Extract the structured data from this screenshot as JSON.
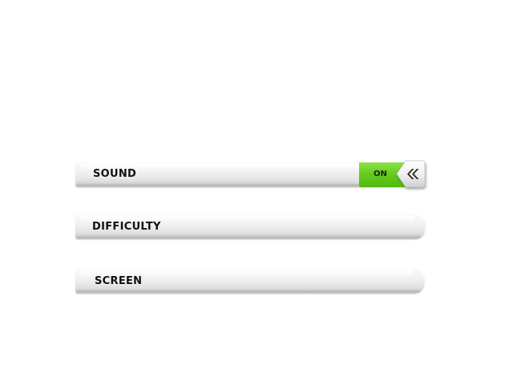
{
  "settings": {
    "sound": {
      "label": "SOUND",
      "state": "ON",
      "state_color": "#66cc1f"
    },
    "difficulty": {
      "label": "DIFFICULTY"
    },
    "screen": {
      "label": "SCREEN"
    },
    "toggle_icon": "double-chevron-left-icon"
  }
}
